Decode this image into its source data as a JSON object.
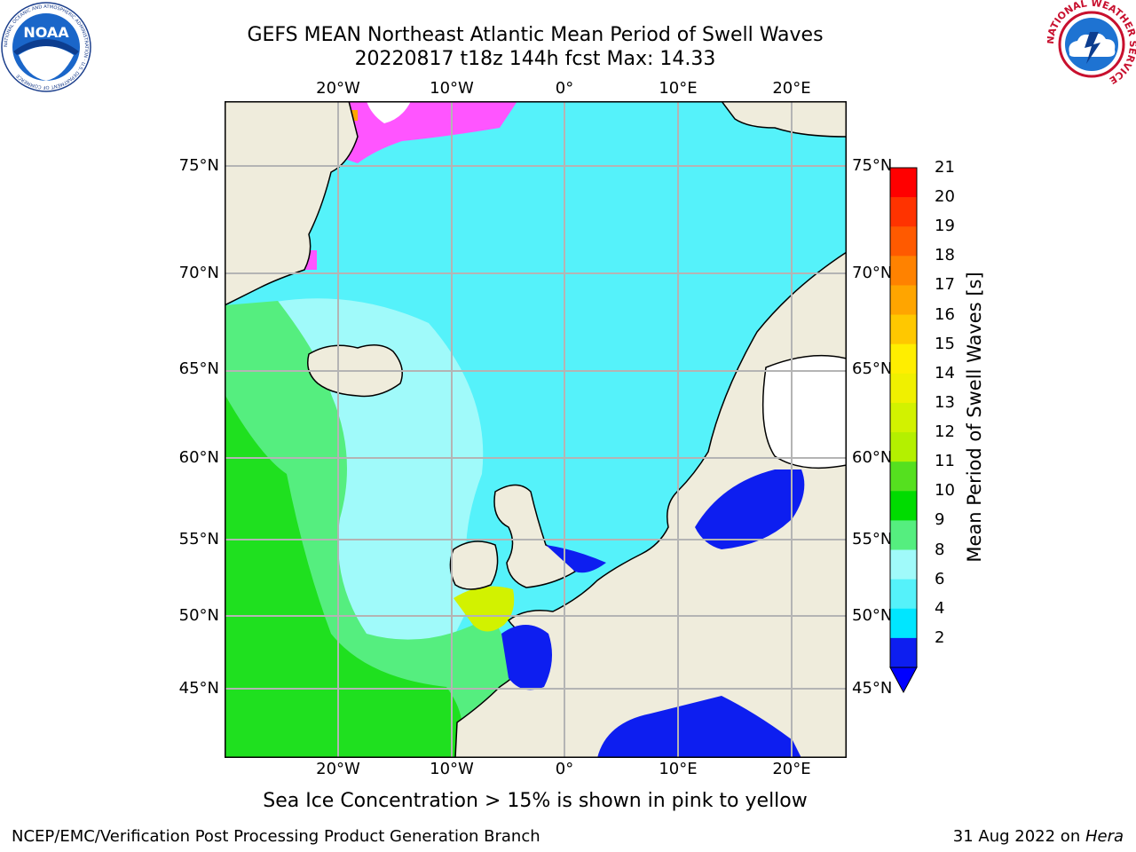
{
  "header": {
    "title_line1": "GEFS MEAN Northeast Atlantic Mean Period of Swell Waves",
    "title_line2": "20220817 t18z 144h fcst   Max: 14.33"
  },
  "logos": {
    "noaa": "NOAA",
    "noaa_ring": "NATIONAL OCEANIC AND ATMOSPHERIC ADMINISTRATION · U.S. DEPARTMENT OF COMMERCE",
    "nws_ring": "NATIONAL WEATHER SERVICE"
  },
  "map": {
    "lon_ticks": [
      "20°W",
      "10°W",
      "0°",
      "10°E",
      "20°E"
    ],
    "lat_ticks": [
      "75°N",
      "70°N",
      "65°N",
      "60°N",
      "55°N",
      "50°N",
      "45°N"
    ],
    "colors": {
      "land": "#efecdc",
      "ocean_swell_6_8": "#55f2fa",
      "ocean_swell_8_9": "#a0fafa",
      "ocean_swell_9_10": "#55ee7f",
      "ocean_swell_10_11": "#1fe01f",
      "ocean_swell_2_4": "#0d1ef0",
      "sea_ice": "#ff55ff",
      "grid": "#b4b4b4"
    }
  },
  "colorbar": {
    "label": "Mean Period of Swell Waves [s]",
    "ticks": [
      "21",
      "20",
      "19",
      "18",
      "17",
      "16",
      "15",
      "14",
      "13",
      "12",
      "11",
      "10",
      "9",
      "8",
      "6",
      "4",
      "2"
    ],
    "colors": [
      "#ff0000",
      "#ff3300",
      "#ff5a00",
      "#ff8200",
      "#ffa500",
      "#ffc800",
      "#ffee00",
      "#f0f000",
      "#d2f200",
      "#b4f000",
      "#55e01f",
      "#00dc00",
      "#55ee7f",
      "#a0fafa",
      "#55f2fa",
      "#00e6ff",
      "#0d1ef0"
    ],
    "underflow_color": "#0000ff"
  },
  "footer": {
    "ice_note": "Sea Ice Concentration > 15% is shown in pink to yellow",
    "left": "NCEP/EMC/Verification Post Processing Product Generation Branch",
    "right_date": "31 Aug 2022 on ",
    "right_host": "Hera"
  }
}
